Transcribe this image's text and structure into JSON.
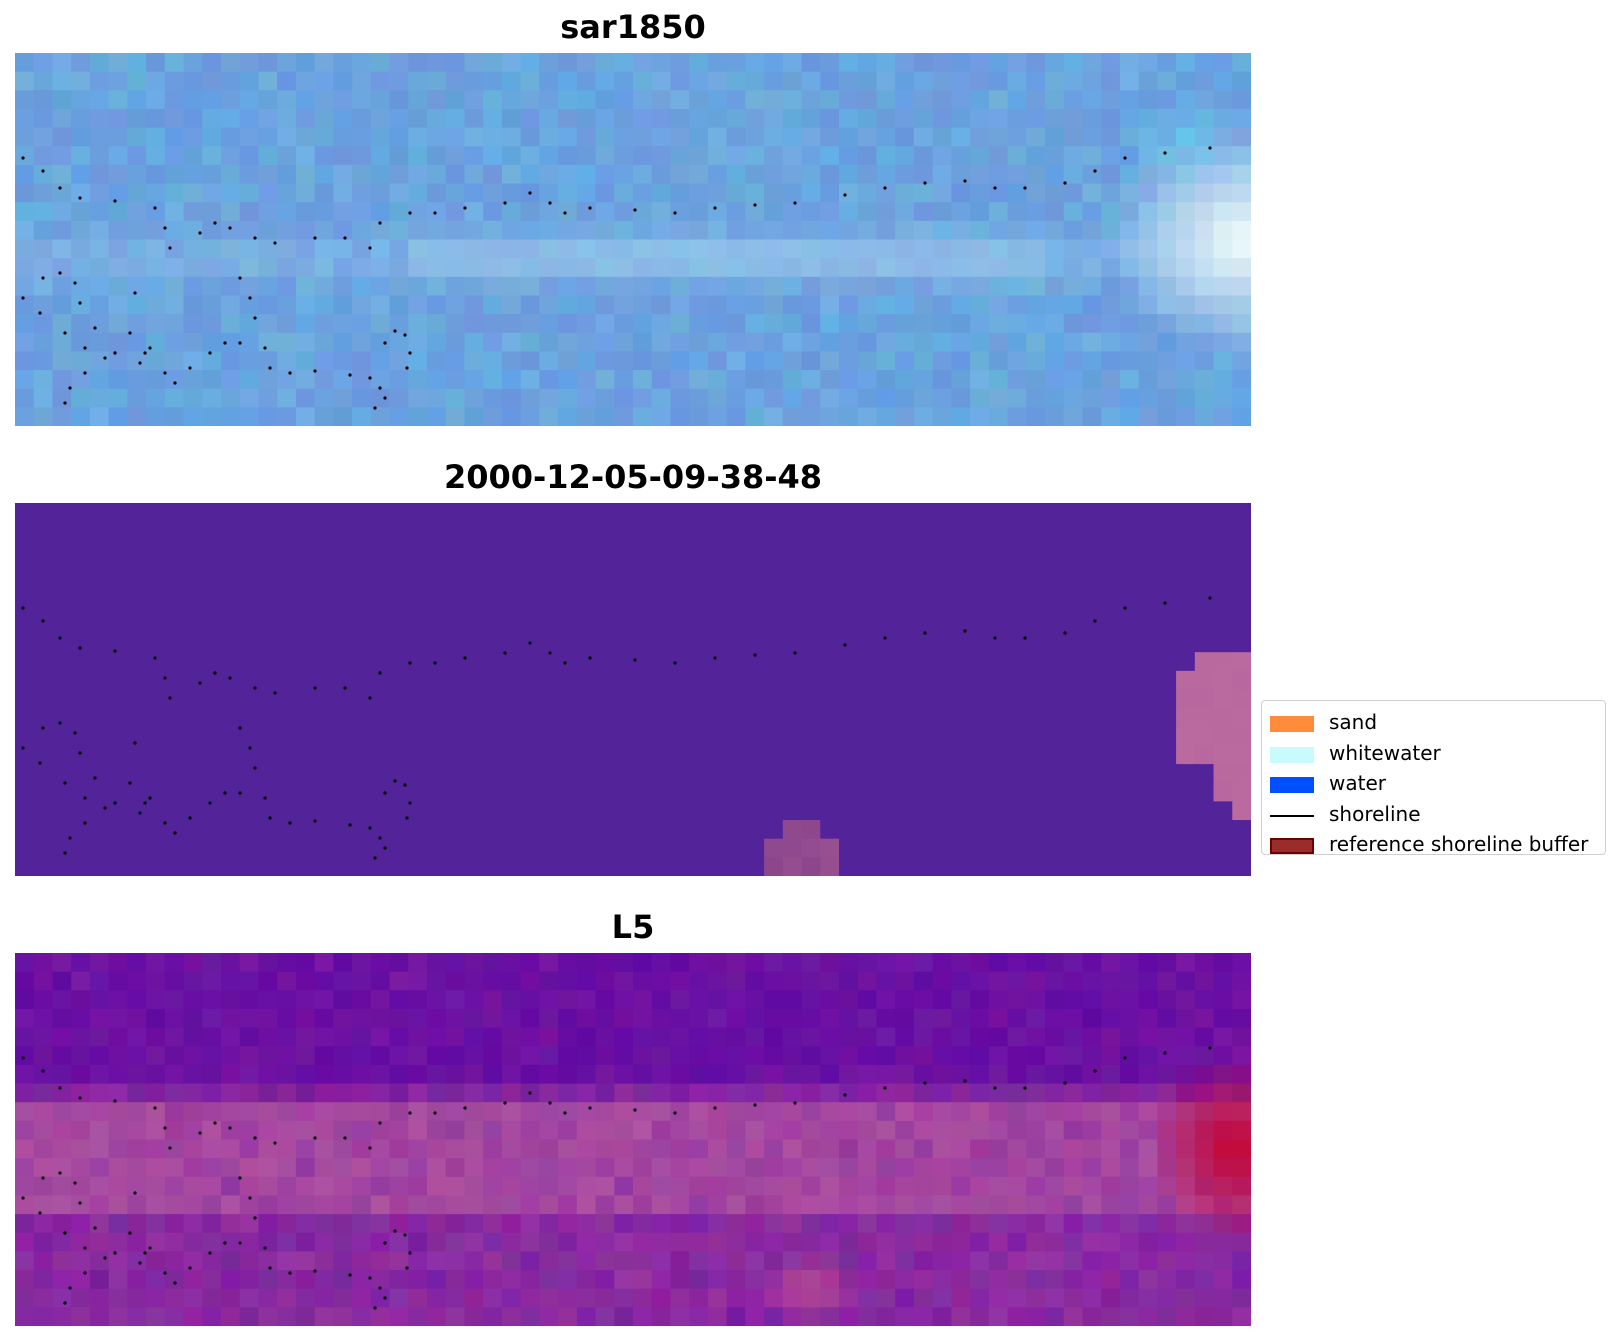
{
  "panels": [
    {
      "title": "sar1850",
      "palette": "rgb"
    },
    {
      "title": "2000-12-05-09-38-48",
      "palette": "classification"
    },
    {
      "title": "L5",
      "palette": "index"
    }
  ],
  "legend": {
    "items": [
      {
        "label": "sand",
        "kind": "patch",
        "color": "#ff8c3c",
        "edge": ""
      },
      {
        "label": "whitewater",
        "kind": "patch",
        "color": "#c8fcfc",
        "edge": ""
      },
      {
        "label": "water",
        "kind": "patch",
        "color": "#0050ff",
        "edge": ""
      },
      {
        "label": "shoreline",
        "kind": "line",
        "color": "#000000",
        "edge": ""
      },
      {
        "label": "reference shoreline buffer",
        "kind": "patch",
        "color": "#9b2c2c",
        "edge": "#6e0000"
      }
    ]
  },
  "colors": {
    "rgb_base": "#5f9fd8",
    "classification_bg": "#532399",
    "classification_buffer": "#b8689e",
    "index_base": "#7d2a98",
    "index_high": "#c8002c",
    "shoreline_points": "#000000"
  }
}
